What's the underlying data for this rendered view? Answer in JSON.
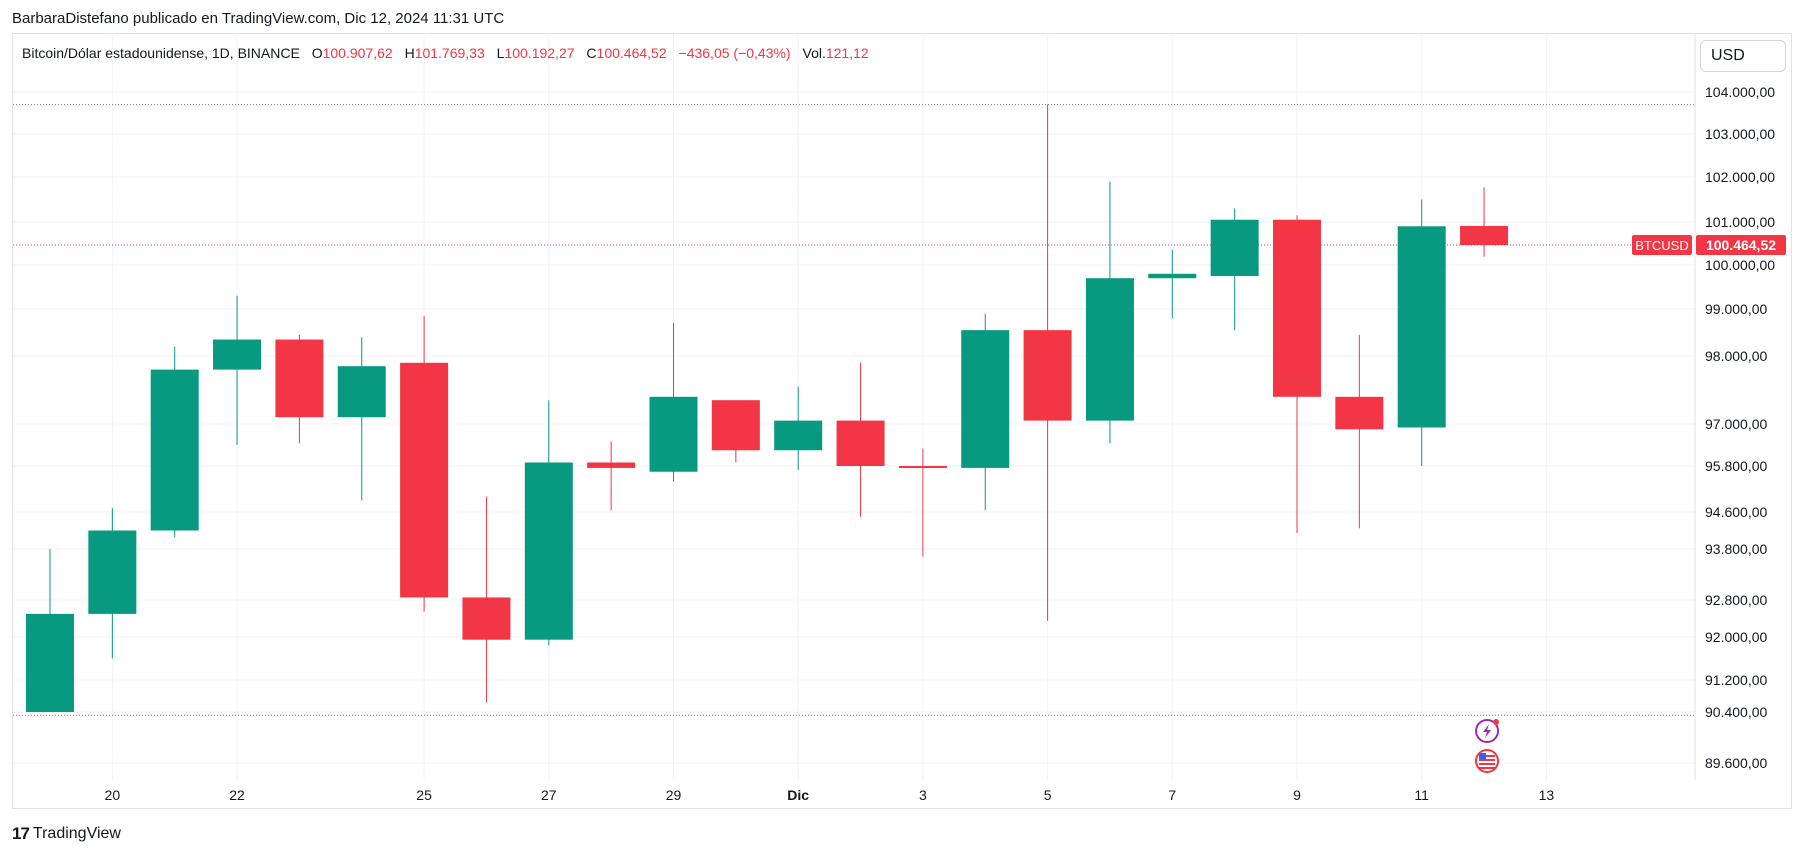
{
  "header": {
    "credit": "BarbaraDistefano publicado en TradingView.com, Dic 12, 2024 11:31 UTC"
  },
  "legend": {
    "symbol": "Bitcoin/Dólar estadounidense, 1D, BINANCE",
    "open_label": "O",
    "open": "100.907,62",
    "high_label": "H",
    "high": "101.769,33",
    "low_label": "L",
    "low": "100.192,27",
    "close_label": "C",
    "close": "100.464,52",
    "change": "−436,05 (−0,43%)",
    "vol_label": "Vol.",
    "vol": "121,12"
  },
  "currency_button": "USD",
  "brand": {
    "name": "TradingView",
    "logo_text": "17"
  },
  "colors": {
    "up": "#089981",
    "down": "#f23645",
    "grid": "#f0f3fa",
    "text": "#131722"
  },
  "icons": [
    "lightning-event-icon",
    "us-flag-event-icon"
  ],
  "chart_data": {
    "type": "candlestick",
    "title": "Bitcoin/Dólar estadounidense, 1D, BINANCE",
    "currency": "USD",
    "price_label": {
      "name": "BTCUSD",
      "value": "100.464,52",
      "price": 100464.52
    },
    "horizontal_levels": [
      103700,
      90350
    ],
    "y_ticks": [
      {
        "label": "104.000,00",
        "value": 104000
      },
      {
        "label": "103.000,00",
        "value": 103000
      },
      {
        "label": "102.000,00",
        "value": 102000
      },
      {
        "label": "101.000,00",
        "value": 101000
      },
      {
        "label": "100.000,00",
        "value": 100000
      },
      {
        "label": "99.000,00",
        "value": 99000
      },
      {
        "label": "98.000,00",
        "value": 98000
      },
      {
        "label": "97.000,00",
        "value": 97000
      },
      {
        "label": "95.800,00",
        "value": 95800
      },
      {
        "label": "94.600,00",
        "value": 94600
      },
      {
        "label": "93.800,00",
        "value": 93800
      },
      {
        "label": "92.800,00",
        "value": 92800
      },
      {
        "label": "92.000,00",
        "value": 92000
      },
      {
        "label": "91.200,00",
        "value": 91200
      },
      {
        "label": "90.400,00",
        "value": 90400
      },
      {
        "label": "89.600,00",
        "value": 89600
      }
    ],
    "x_ticks": [
      {
        "label": "20",
        "index": 1,
        "bold": false
      },
      {
        "label": "22",
        "index": 3,
        "bold": false
      },
      {
        "label": "25",
        "index": 6,
        "bold": false
      },
      {
        "label": "27",
        "index": 8,
        "bold": false
      },
      {
        "label": "29",
        "index": 10,
        "bold": false
      },
      {
        "label": "Dic",
        "index": 12,
        "bold": true
      },
      {
        "label": "3",
        "index": 14,
        "bold": false
      },
      {
        "label": "5",
        "index": 16,
        "bold": false
      },
      {
        "label": "7",
        "index": 18,
        "bold": false
      },
      {
        "label": "9",
        "index": 20,
        "bold": false
      },
      {
        "label": "11",
        "index": 22,
        "bold": false
      },
      {
        "label": "13",
        "index": 24,
        "bold": false
      }
    ],
    "candles": [
      {
        "date": "19",
        "open": 90400,
        "high": 93800,
        "low": 90400,
        "close": 92500
      },
      {
        "date": "20",
        "open": 92500,
        "high": 94700,
        "low": 91600,
        "close": 94200
      },
      {
        "date": "21",
        "open": 94200,
        "high": 98200,
        "low": 94050,
        "close": 97800
      },
      {
        "date": "22",
        "open": 97800,
        "high": 99300,
        "low": 96400,
        "close": 98350
      },
      {
        "date": "23",
        "open": 98350,
        "high": 98450,
        "low": 96450,
        "close": 97100
      },
      {
        "date": "24",
        "open": 97100,
        "high": 98400,
        "low": 94900,
        "close": 97850
      },
      {
        "date": "25",
        "open": 97900,
        "high": 98850,
        "low": 92550,
        "close": 92850
      },
      {
        "date": "26",
        "open": 92850,
        "high": 95000,
        "low": 90650,
        "close": 91950
      },
      {
        "date": "27",
        "open": 91950,
        "high": 97350,
        "low": 91850,
        "close": 95900
      },
      {
        "date": "28",
        "open": 95900,
        "high": 96500,
        "low": 94650,
        "close": 95750
      },
      {
        "date": "29",
        "open": 95650,
        "high": 98700,
        "low": 95400,
        "close": 97400
      },
      {
        "date": "30",
        "open": 97350,
        "high": 97350,
        "low": 95900,
        "close": 96250
      },
      {
        "date": "1",
        "open": 96250,
        "high": 97550,
        "low": 95700,
        "close": 97050
      },
      {
        "date": "2",
        "open": 97050,
        "high": 97900,
        "low": 94500,
        "close": 95800
      },
      {
        "date": "3",
        "open": 95800,
        "high": 96300,
        "low": 93650,
        "close": 95750
      },
      {
        "date": "4",
        "open": 95750,
        "high": 98900,
        "low": 94650,
        "close": 98550
      },
      {
        "date": "5",
        "open": 98550,
        "high": 103700,
        "low": 92350,
        "close": 97050
      },
      {
        "date": "6",
        "open": 97050,
        "high": 101900,
        "low": 96450,
        "close": 99700
      },
      {
        "date": "7",
        "open": 99700,
        "high": 100350,
        "low": 98800,
        "close": 99800
      },
      {
        "date": "8",
        "open": 99750,
        "high": 101300,
        "low": 98550,
        "close": 101050
      },
      {
        "date": "9",
        "open": 101050,
        "high": 101150,
        "low": 94150,
        "close": 97400
      },
      {
        "date": "10",
        "open": 97400,
        "high": 98450,
        "low": 94250,
        "close": 96850
      },
      {
        "date": "11",
        "open": 96900,
        "high": 101500,
        "low": 95800,
        "close": 100900
      },
      {
        "date": "12",
        "open": 100907.62,
        "high": 101769.33,
        "low": 100192.27,
        "close": 100464.52
      }
    ]
  }
}
